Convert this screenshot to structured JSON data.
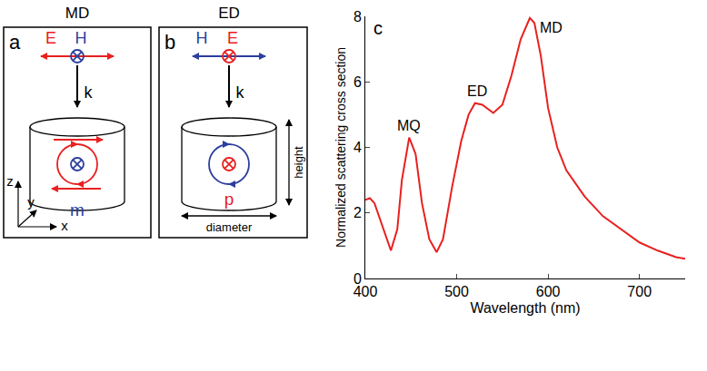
{
  "diagrams": [
    {
      "title": "MD",
      "letter": "a",
      "E": "E",
      "H": "H",
      "k": "k",
      "dipole": "m",
      "axes": [
        "x",
        "y",
        "z"
      ]
    },
    {
      "title": "ED",
      "letter": "b",
      "H": "H",
      "E": "E",
      "k": "k",
      "dipole": "p",
      "height": "height",
      "diameter": "diameter"
    }
  ],
  "chart_data": {
    "type": "line",
    "panel_label": "c",
    "x_label": "Wavelength (nm)",
    "y_label": "Normalized scattering cross section",
    "color": "#e8201f",
    "x": [
      400,
      405,
      410,
      420,
      428,
      435,
      440,
      448,
      455,
      462,
      470,
      478,
      485,
      495,
      505,
      513,
      520,
      528,
      540,
      550,
      560,
      570,
      580,
      585,
      592,
      600,
      610,
      620,
      640,
      660,
      680,
      700,
      720,
      740,
      750
    ],
    "values": [
      2.4,
      2.45,
      2.3,
      1.5,
      0.85,
      1.5,
      3.0,
      4.3,
      3.8,
      2.3,
      1.2,
      0.8,
      1.2,
      2.8,
      4.2,
      5.0,
      5.35,
      5.3,
      5.05,
      5.3,
      6.2,
      7.3,
      7.95,
      7.8,
      6.8,
      5.2,
      4.0,
      3.3,
      2.5,
      1.9,
      1.5,
      1.1,
      0.85,
      0.65,
      0.6
    ],
    "xlim": [
      400,
      750
    ],
    "xticks": [
      400,
      500,
      600,
      700
    ],
    "ylim": [
      0,
      8
    ],
    "yticks": [
      0,
      2,
      4,
      6,
      8
    ],
    "annotations": [
      {
        "text": "MQ",
        "x": 448,
        "y": 4.3
      },
      {
        "text": "ED",
        "x": 522,
        "y": 5.35
      },
      {
        "text": "MD",
        "x": 580,
        "y": 7.95
      }
    ]
  }
}
